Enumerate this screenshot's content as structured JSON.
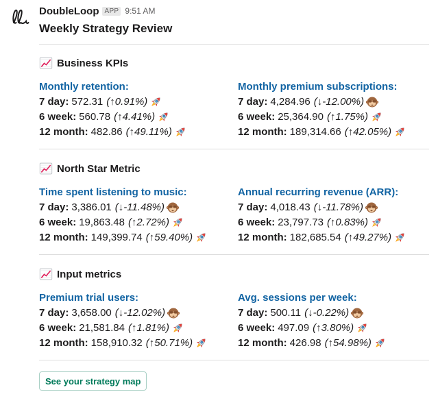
{
  "message": {
    "sender": "DoubleLoop",
    "badge": "APP",
    "time": "9:51 AM",
    "title": "Weekly Strategy Review"
  },
  "icons": {
    "section": "chart-increasing-icon",
    "up": "rocket-icon",
    "down": "see-no-evil-monkey-icon"
  },
  "colors": {
    "link": "#1264a3",
    "button_text": "#007a5a",
    "button_border": "#a9d0c5"
  },
  "sections": [
    {
      "title": "Business KPIs",
      "metrics": [
        {
          "name": "Monthly retention:",
          "rows": [
            {
              "label": "7 day:",
              "value": "572.31",
              "change": "(↑0.91%)",
              "trend": "up"
            },
            {
              "label": "6 week:",
              "value": "560.78",
              "change": "(↑4.41%)",
              "trend": "up"
            },
            {
              "label": "12 month:",
              "value": "482.86",
              "change": "(↑49.11%)",
              "trend": "up"
            }
          ]
        },
        {
          "name": "Monthly premium subscriptions:",
          "rows": [
            {
              "label": "7 day:",
              "value": "4,284.96",
              "change": "(↓-12.00%)",
              "trend": "down"
            },
            {
              "label": "6 week:",
              "value": "25,364.90",
              "change": "(↑1.75%)",
              "trend": "up"
            },
            {
              "label": "12 month:",
              "value": "189,314.66",
              "change": "(↑42.05%)",
              "trend": "up"
            }
          ]
        }
      ]
    },
    {
      "title": "North Star Metric",
      "metrics": [
        {
          "name": "Time spent listening to music:",
          "rows": [
            {
              "label": "7 day:",
              "value": "3,386.01",
              "change": "(↓-11.48%)",
              "trend": "down"
            },
            {
              "label": "6 week:",
              "value": "19,863.48",
              "change": "(↑2.72%)",
              "trend": "up"
            },
            {
              "label": "12 month:",
              "value": "149,399.74",
              "change": "(↑59.40%)",
              "trend": "up"
            }
          ]
        },
        {
          "name": "Annual recurring revenue (ARR):",
          "rows": [
            {
              "label": "7 day:",
              "value": "4,018.43",
              "change": "(↓-11.78%)",
              "trend": "down"
            },
            {
              "label": "6 week:",
              "value": "23,797.73",
              "change": "(↑0.83%)",
              "trend": "up"
            },
            {
              "label": "12 month:",
              "value": "182,685.54",
              "change": "(↑49.27%)",
              "trend": "up"
            }
          ]
        }
      ]
    },
    {
      "title": "Input metrics",
      "metrics": [
        {
          "name": "Premium trial users:",
          "rows": [
            {
              "label": "7 day:",
              "value": "3,658.00",
              "change": "(↓-12.02%)",
              "trend": "down"
            },
            {
              "label": "6 week:",
              "value": "21,581.84",
              "change": "(↑1.81%)",
              "trend": "up"
            },
            {
              "label": "12 month:",
              "value": "158,910.32",
              "change": "(↑50.71%)",
              "trend": "up"
            }
          ]
        },
        {
          "name": "Avg. sessions per week:",
          "rows": [
            {
              "label": "7 day:",
              "value": "500.11",
              "change": "(↓-0.22%)",
              "trend": "down"
            },
            {
              "label": "6 week:",
              "value": "497.09",
              "change": "(↑3.80%)",
              "trend": "up"
            },
            {
              "label": "12 month:",
              "value": "426.98",
              "change": "(↑54.98%)",
              "trend": "up"
            }
          ]
        }
      ]
    }
  ],
  "button": {
    "label": "See your strategy map"
  }
}
